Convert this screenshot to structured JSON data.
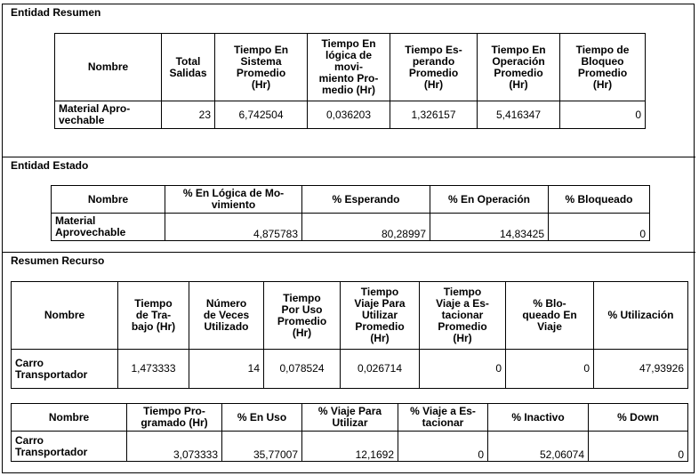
{
  "entidad_resumen": {
    "title": "Entidad Resumen",
    "headers": [
      "Nombre",
      "Total\nSalidas",
      "Tiempo En\nSistema\nPromedio\n(Hr)",
      "Tiempo En\nlógica de\nmovi-\nmiento Pro-\nmedio (Hr)",
      "Tiempo Es-\nperando\nPromedio\n(Hr)",
      "Tiempo En\nOperación\nPromedio\n(Hr)",
      "Tiempo de\nBloqueo\nPromedio\n(Hr)"
    ],
    "row": [
      "Material Apro-\nvechable",
      "23",
      "6,742504",
      "0,036203",
      "1,326157",
      "5,416347",
      "0"
    ]
  },
  "entidad_estado": {
    "title": "Entidad Estado",
    "headers": [
      "Nombre",
      "% En Lógica de Mo-\nvimiento",
      "% Esperando",
      "% En Operación",
      "% Bloqueado"
    ],
    "row": [
      "Material\nAprovechable",
      "4,875783",
      "80,28997",
      "14,83425",
      "0"
    ]
  },
  "resumen_recurso": {
    "title": "Resumen Recurso",
    "table1": {
      "headers": [
        "Nombre",
        "Tiempo\nde Tra-\nbajo (Hr)",
        "Número\nde Veces\nUtilizado",
        "Tiempo\nPor Uso\nPromedio\n(Hr)",
        "Tiempo\nViaje Para\nUtilizar\nPromedio\n(Hr)",
        "Tiempo\nViaje a Es-\ntacionar\nPromedio\n(Hr)",
        "% Blo-\nqueado En\nViaje",
        "% Utilización"
      ],
      "row": [
        "Carro\nTransportador",
        "1,473333",
        "14",
        "0,078524",
        "0,026714",
        "0",
        "0",
        "47,93926"
      ]
    },
    "table2": {
      "headers": [
        "Nombre",
        "Tiempo Pro-\ngramado (Hr)",
        "% En Uso",
        "% Viaje Para\nUtilizar",
        "% Viaje a Es-\ntacionar",
        "% Inactivo",
        "% Down"
      ],
      "row": [
        "Carro\nTransportador",
        "3,073333",
        "35,77007",
        "12,1692",
        "0",
        "52,06074",
        "0"
      ]
    }
  }
}
